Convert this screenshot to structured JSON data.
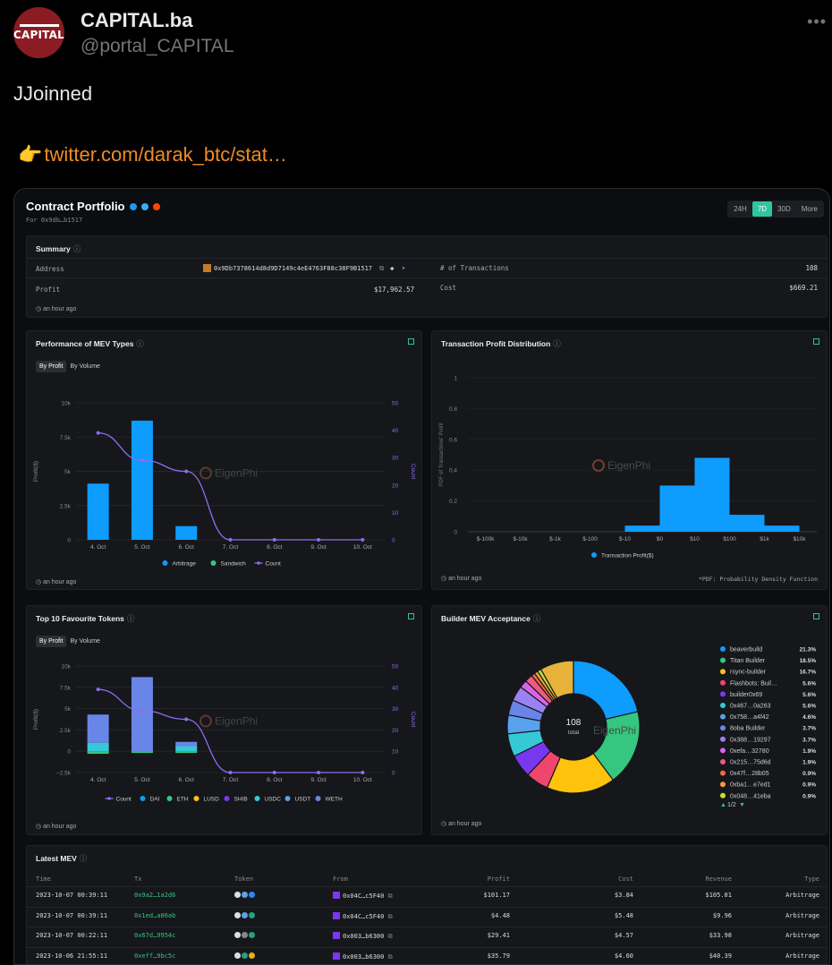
{
  "tweet": {
    "display_name": "CAPITAL.ba",
    "handle": "@portal_CAPITAL",
    "avatar_text": "CAPITAL",
    "text": "JJoinned",
    "link": "twitter.com/darak_btc/stat…"
  },
  "portfolio": {
    "title": "Contract Portfolio",
    "subtitle": "For 0x9db…b1517",
    "ranges": [
      "24H",
      "7D",
      "30D",
      "More"
    ],
    "active_range": "7D"
  },
  "summary": {
    "title": "Summary",
    "address_label": "Address",
    "address_value": "0x9Db7378614d8d9D7149c4eE4763F88c38F9B1517",
    "tx_label": "# of Transactions",
    "tx_value": "108",
    "profit_label": "Profit",
    "profit_value": "$17,962.57",
    "cost_label": "Cost",
    "cost_value": "$669.21",
    "ago": "an hour ago"
  },
  "mev_types": {
    "title": "Performance of MEV Types",
    "tabs": [
      "By Profit",
      "By Volume"
    ],
    "ago": "an hour ago",
    "watermark": "EigenPhi",
    "chart_data": {
      "type": "bar",
      "categories": [
        "4. Oct",
        "5. Oct",
        "6. Oct",
        "7. Oct",
        "8. Oct",
        "9. Oct",
        "10. Oct"
      ],
      "series": [
        {
          "name": "Arbitrage",
          "values": [
            4100,
            8700,
            1000,
            0,
            0,
            0,
            0
          ],
          "color": "#0e9cff"
        },
        {
          "name": "Sandwich",
          "values": [
            0,
            0,
            0,
            0,
            0,
            0,
            0
          ],
          "color": "#35c77f"
        },
        {
          "name": "Count",
          "type": "line",
          "axis": "right",
          "values": [
            39,
            29,
            25,
            0,
            0,
            0,
            0
          ],
          "color": "#8f6cf0"
        }
      ],
      "ylabel": "Profit($)",
      "y2label": "Count",
      "yticks": [
        "0",
        "2.5k",
        "5k",
        "7.5k",
        "10k"
      ],
      "y2ticks": [
        "0",
        "10",
        "20",
        "30",
        "40",
        "50"
      ],
      "ylim": [
        0,
        10000
      ],
      "y2lim": [
        0,
        50
      ],
      "legend": "bottom"
    }
  },
  "profit_dist": {
    "title": "Transaction Profit Distribution",
    "ago": "an hour ago",
    "footnote": "*PDF: Probability Density Function",
    "watermark": "EigenPhi",
    "chart_data": {
      "type": "bar",
      "categories": [
        "$-100k",
        "$-10k",
        "$-1k",
        "$-100",
        "$-10",
        "$0",
        "$10",
        "$100",
        "$1k",
        "$10k"
      ],
      "bins": [
        {
          "from": "$-10",
          "to": "$0",
          "value": 0.04
        },
        {
          "from": "$0",
          "to": "$10",
          "value": 0.3
        },
        {
          "from": "$10",
          "to": "$100",
          "value": 0.48
        },
        {
          "from": "$100",
          "to": "$1k",
          "value": 0.11
        },
        {
          "from": "$1k",
          "to": "$10k",
          "value": 0.04
        }
      ],
      "ylabel": "PDF of Transactions' Profit",
      "yticks": [
        "0",
        "0.2",
        "0.4",
        "0.6",
        "0.8",
        "1"
      ],
      "ylim": [
        0,
        1
      ],
      "legend": [
        "Transaction Profit($)"
      ],
      "color": "#0e9cff"
    }
  },
  "tokens": {
    "title": "Top 10 Favourite Tokens",
    "tabs": [
      "By Profit",
      "By Volume"
    ],
    "ago": "an hour ago",
    "watermark": "EigenPhi",
    "chart_data": {
      "type": "bar",
      "categories": [
        "4. Oct",
        "5. Oct",
        "6. Oct",
        "7. Oct",
        "8. Oct",
        "9. Oct",
        "10. Oct"
      ],
      "series": [
        {
          "name": "Count",
          "type": "line",
          "axis": "right",
          "values": [
            39,
            29,
            25,
            0,
            0,
            0,
            0
          ],
          "color": "#8f6cf0"
        },
        {
          "name": "DAI",
          "values": [
            0,
            0,
            0,
            0,
            0,
            0,
            0
          ],
          "color": "#0e9cff"
        },
        {
          "name": "ETH",
          "values": [
            0,
            0,
            0,
            0,
            0,
            0,
            0
          ],
          "color": "#35c77f"
        },
        {
          "name": "LUSD",
          "values": [
            0,
            0,
            0,
            0,
            0,
            0,
            0
          ],
          "color": "#ffc30e"
        },
        {
          "name": "SHIB",
          "values": [
            0,
            0,
            0,
            0,
            0,
            0,
            0
          ],
          "color": "#7a37f0"
        },
        {
          "name": "USDC",
          "values": [
            1000,
            0,
            600,
            0,
            0,
            0,
            0
          ],
          "color": "#35c9d6"
        },
        {
          "name": "USDT",
          "values": [
            0,
            0,
            0,
            0,
            0,
            0,
            0
          ],
          "color": "#5aa1ee"
        },
        {
          "name": "WETH",
          "values": [
            3300,
            8700,
            500,
            0,
            0,
            0,
            0
          ],
          "color": "#6a85e8"
        }
      ],
      "negative_values": [
        -300,
        -200,
        -200,
        0,
        0,
        0,
        0
      ],
      "ylabel": "Profit($)",
      "y2label": "Count",
      "yticks": [
        "−2.5k",
        "0",
        "2.5k",
        "5k",
        "7.5k",
        "10k"
      ],
      "y2ticks": [
        "0",
        "10",
        "20",
        "30",
        "40",
        "50"
      ],
      "ylim": [
        -2500,
        10000
      ],
      "y2lim": [
        0,
        50
      ],
      "legend": "bottom"
    }
  },
  "builder": {
    "title": "Builder MEV Acceptance",
    "ago": "an hour ago",
    "center_value": "108",
    "center_label": "total",
    "watermark": "EigenPhi",
    "pager": "1/2",
    "chart_data": {
      "type": "pie",
      "slices": [
        {
          "name": "beaverbuild",
          "value": 21.3,
          "label": "21.3%",
          "color": "#0e9cff"
        },
        {
          "name": "Titan Builder",
          "value": 18.5,
          "label": "18.5%",
          "color": "#35c77f"
        },
        {
          "name": "rsync-builder",
          "value": 16.7,
          "label": "16.7%",
          "color": "#ffc30e"
        },
        {
          "name": "Flashbots: Buil…",
          "value": 5.6,
          "label": "5.6%",
          "color": "#f0466e"
        },
        {
          "name": "builder0x69",
          "value": 5.6,
          "label": "5.6%",
          "color": "#7a37f0"
        },
        {
          "name": "0x467…0a263",
          "value": 5.6,
          "label": "5.6%",
          "color": "#35c9d6"
        },
        {
          "name": "0x758…a4f42",
          "value": 4.6,
          "label": "4.6%",
          "color": "#5aa1ee"
        },
        {
          "name": "8oba Builder",
          "value": 3.7,
          "label": "3.7%",
          "color": "#6a85e8"
        },
        {
          "name": "0x388…19297",
          "value": 3.7,
          "label": "3.7%",
          "color": "#9b82f2"
        },
        {
          "name": "0xefa…32780",
          "value": 1.9,
          "label": "1.9%",
          "color": "#d765e6"
        },
        {
          "name": "0x215…75d6d",
          "value": 1.9,
          "label": "1.9%",
          "color": "#f05a82"
        },
        {
          "name": "0x47f…28b05",
          "value": 0.9,
          "label": "0.9%",
          "color": "#f06a3c"
        },
        {
          "name": "0xba1…e7ed1",
          "value": 0.9,
          "label": "0.9%",
          "color": "#f59a3c"
        },
        {
          "name": "0x048…41eba",
          "value": 0.9,
          "label": "0.9%",
          "color": "#c8e032"
        },
        {
          "name": "",
          "value": 8.2,
          "label": "",
          "color": "#e6b23a"
        }
      ]
    }
  },
  "latest": {
    "title": "Latest MEV",
    "headers": [
      "Time",
      "Tx",
      "Token",
      "From",
      "Profit",
      "Cost",
      "Revenue",
      "Type"
    ],
    "rows": [
      {
        "time": "2023-10-07 00:39:11",
        "tx": "0x9a2…1a2d6",
        "from": "0x04C…c5F40",
        "profit": "$101.17",
        "cost": "$3.84",
        "revenue": "$105.01",
        "type": "Arbitrage"
      },
      {
        "time": "2023-10-07 00:39:11",
        "tx": "0x1ed…a06ab",
        "from": "0x04C…c5F40",
        "profit": "$4.48",
        "cost": "$5.48",
        "revenue": "$9.96",
        "type": "Arbitrage"
      },
      {
        "time": "2023-10-07 00:22:11",
        "tx": "0x67d…9954c",
        "from": "0x003…b6300",
        "profit": "$29.41",
        "cost": "$4.57",
        "revenue": "$33.98",
        "type": "Arbitrage"
      },
      {
        "time": "2023-10-06 21:55:11",
        "tx": "0xeff…9bc5c",
        "from": "0x003…b6300",
        "profit": "$35.79",
        "cost": "$4.60",
        "revenue": "$40.39",
        "type": "Arbitrage"
      }
    ]
  }
}
